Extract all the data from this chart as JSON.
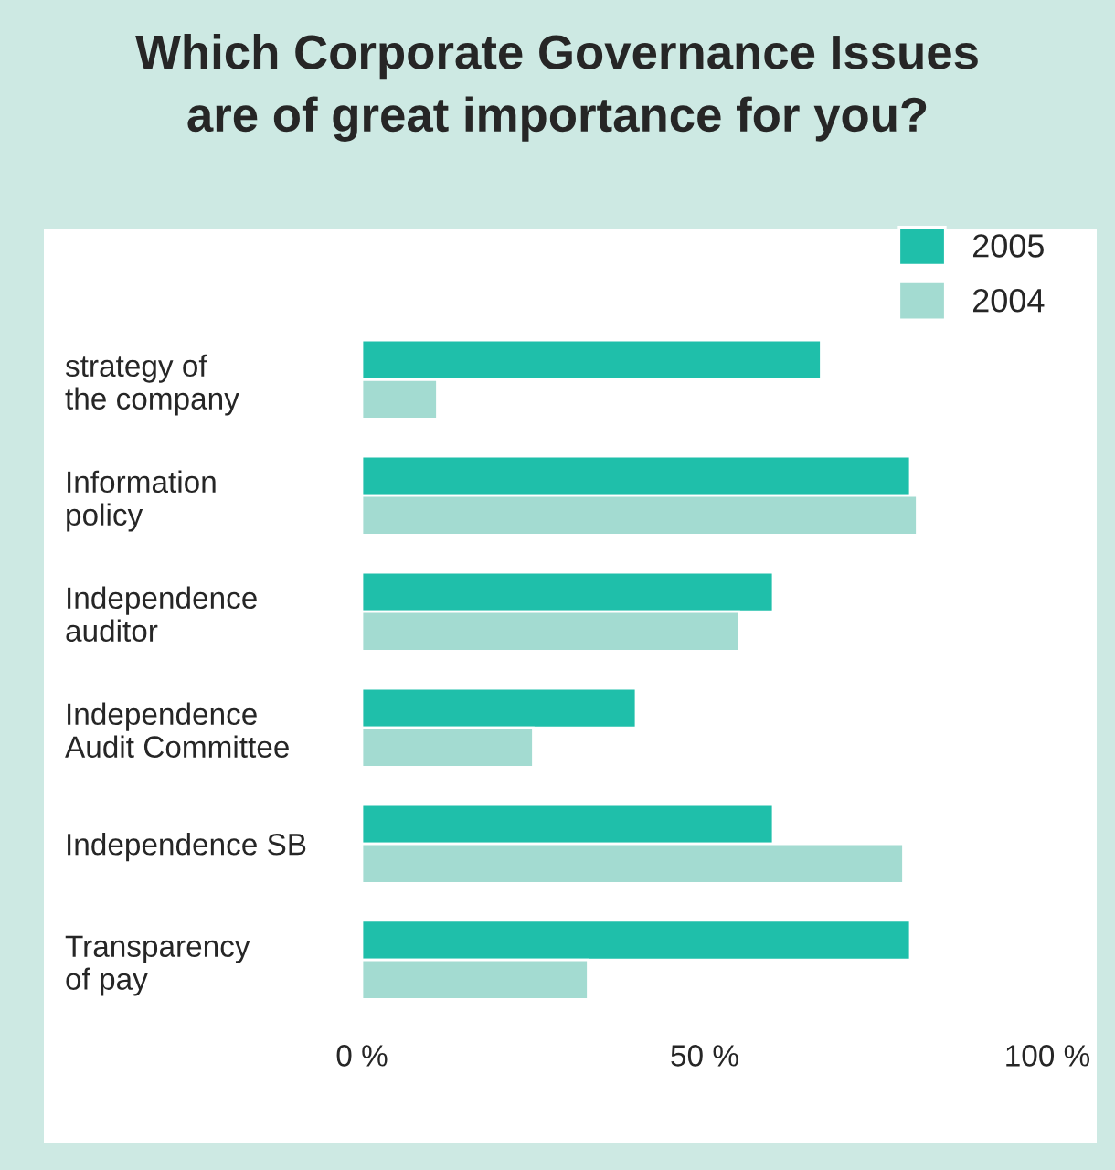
{
  "chart_data": {
    "type": "bar",
    "orientation": "horizontal",
    "title": "Which Corporate Governance Issues\nare of great importance for you?",
    "categories": [
      "strategy of\nthe company",
      "Information\npolicy",
      "Independence\nauditor",
      "Independence\nAudit Committee",
      "Independence SB",
      "Transparency\nof pay"
    ],
    "series": [
      {
        "name": "2005",
        "color": "#1fbfaa",
        "values": [
          67,
          80,
          60,
          40,
          60,
          80
        ]
      },
      {
        "name": "2004",
        "color": "#a3dbd1",
        "values": [
          11,
          81,
          55,
          25,
          79,
          33
        ]
      }
    ],
    "xlim": [
      0,
      100
    ],
    "xticks": [
      {
        "value": 0,
        "label": "0 %"
      },
      {
        "value": 50,
        "label": "50 %"
      },
      {
        "value": 100,
        "label": "100 %"
      }
    ],
    "legend": "top right",
    "grid": false
  }
}
